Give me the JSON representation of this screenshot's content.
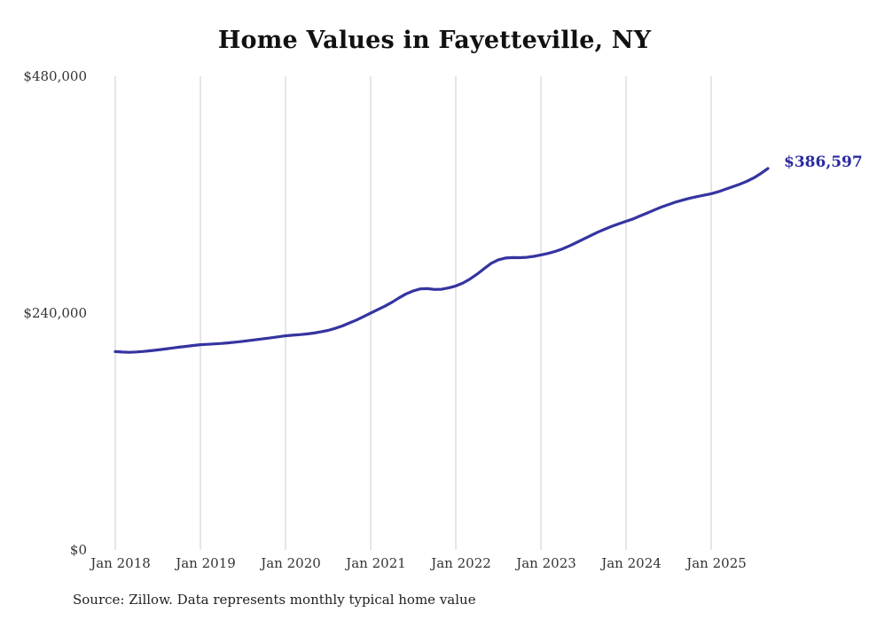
{
  "source_note": "Source: Zillow. Data represents monthly typical home value",
  "colors": {
    "line": "#3534a1",
    "grid": "#cccccc",
    "axis_text": "#333333",
    "end_label": "#2b2ba0",
    "background": "#ffffff"
  },
  "chart_data": {
    "type": "line",
    "title": "Home Values in Fayetteville, NY",
    "xlabel": "",
    "ylabel": "",
    "ylim": [
      0,
      480000
    ],
    "grid": "vertical-only",
    "legend": "none",
    "y_ticks": [
      {
        "value": 0,
        "label": "$0"
      },
      {
        "value": 240000,
        "label": "$240,000"
      },
      {
        "value": 480000,
        "label": "$480,000"
      }
    ],
    "x_ticks": [
      "Jan 2018",
      "Jan 2019",
      "Jan 2020",
      "Jan 2021",
      "Jan 2022",
      "Jan 2023",
      "Jan 2024",
      "Jan 2025"
    ],
    "x_start": "Jan 2018",
    "x_end": "Sep 2025",
    "x_interval": "month",
    "end_label": "$386,597",
    "end_value": 386597,
    "series": [
      {
        "name": "Typical home value",
        "values": [
          201000,
          200500,
          200300,
          200600,
          201200,
          201900,
          202700,
          203600,
          204600,
          205500,
          206300,
          207200,
          208000,
          208400,
          208800,
          209300,
          209900,
          210600,
          211400,
          212300,
          213200,
          214100,
          215000,
          216000,
          217000,
          217600,
          218200,
          218900,
          219800,
          221000,
          222500,
          224500,
          227000,
          230000,
          233000,
          236500,
          240000,
          243500,
          247000,
          251000,
          255500,
          259500,
          262500,
          264500,
          264800,
          264000,
          264200,
          265500,
          267500,
          270500,
          274500,
          279500,
          285000,
          290500,
          294000,
          295800,
          296300,
          296200,
          296500,
          297500,
          299000,
          300500,
          302500,
          305000,
          308000,
          311500,
          315000,
          318500,
          322000,
          325000,
          328000,
          330500,
          333000,
          335500,
          338500,
          341500,
          344500,
          347500,
          350000,
          352500,
          354500,
          356500,
          358000,
          359500,
          361000,
          363000,
          365500,
          368000,
          370500,
          373500,
          377000,
          381500,
          386597
        ]
      }
    ]
  }
}
